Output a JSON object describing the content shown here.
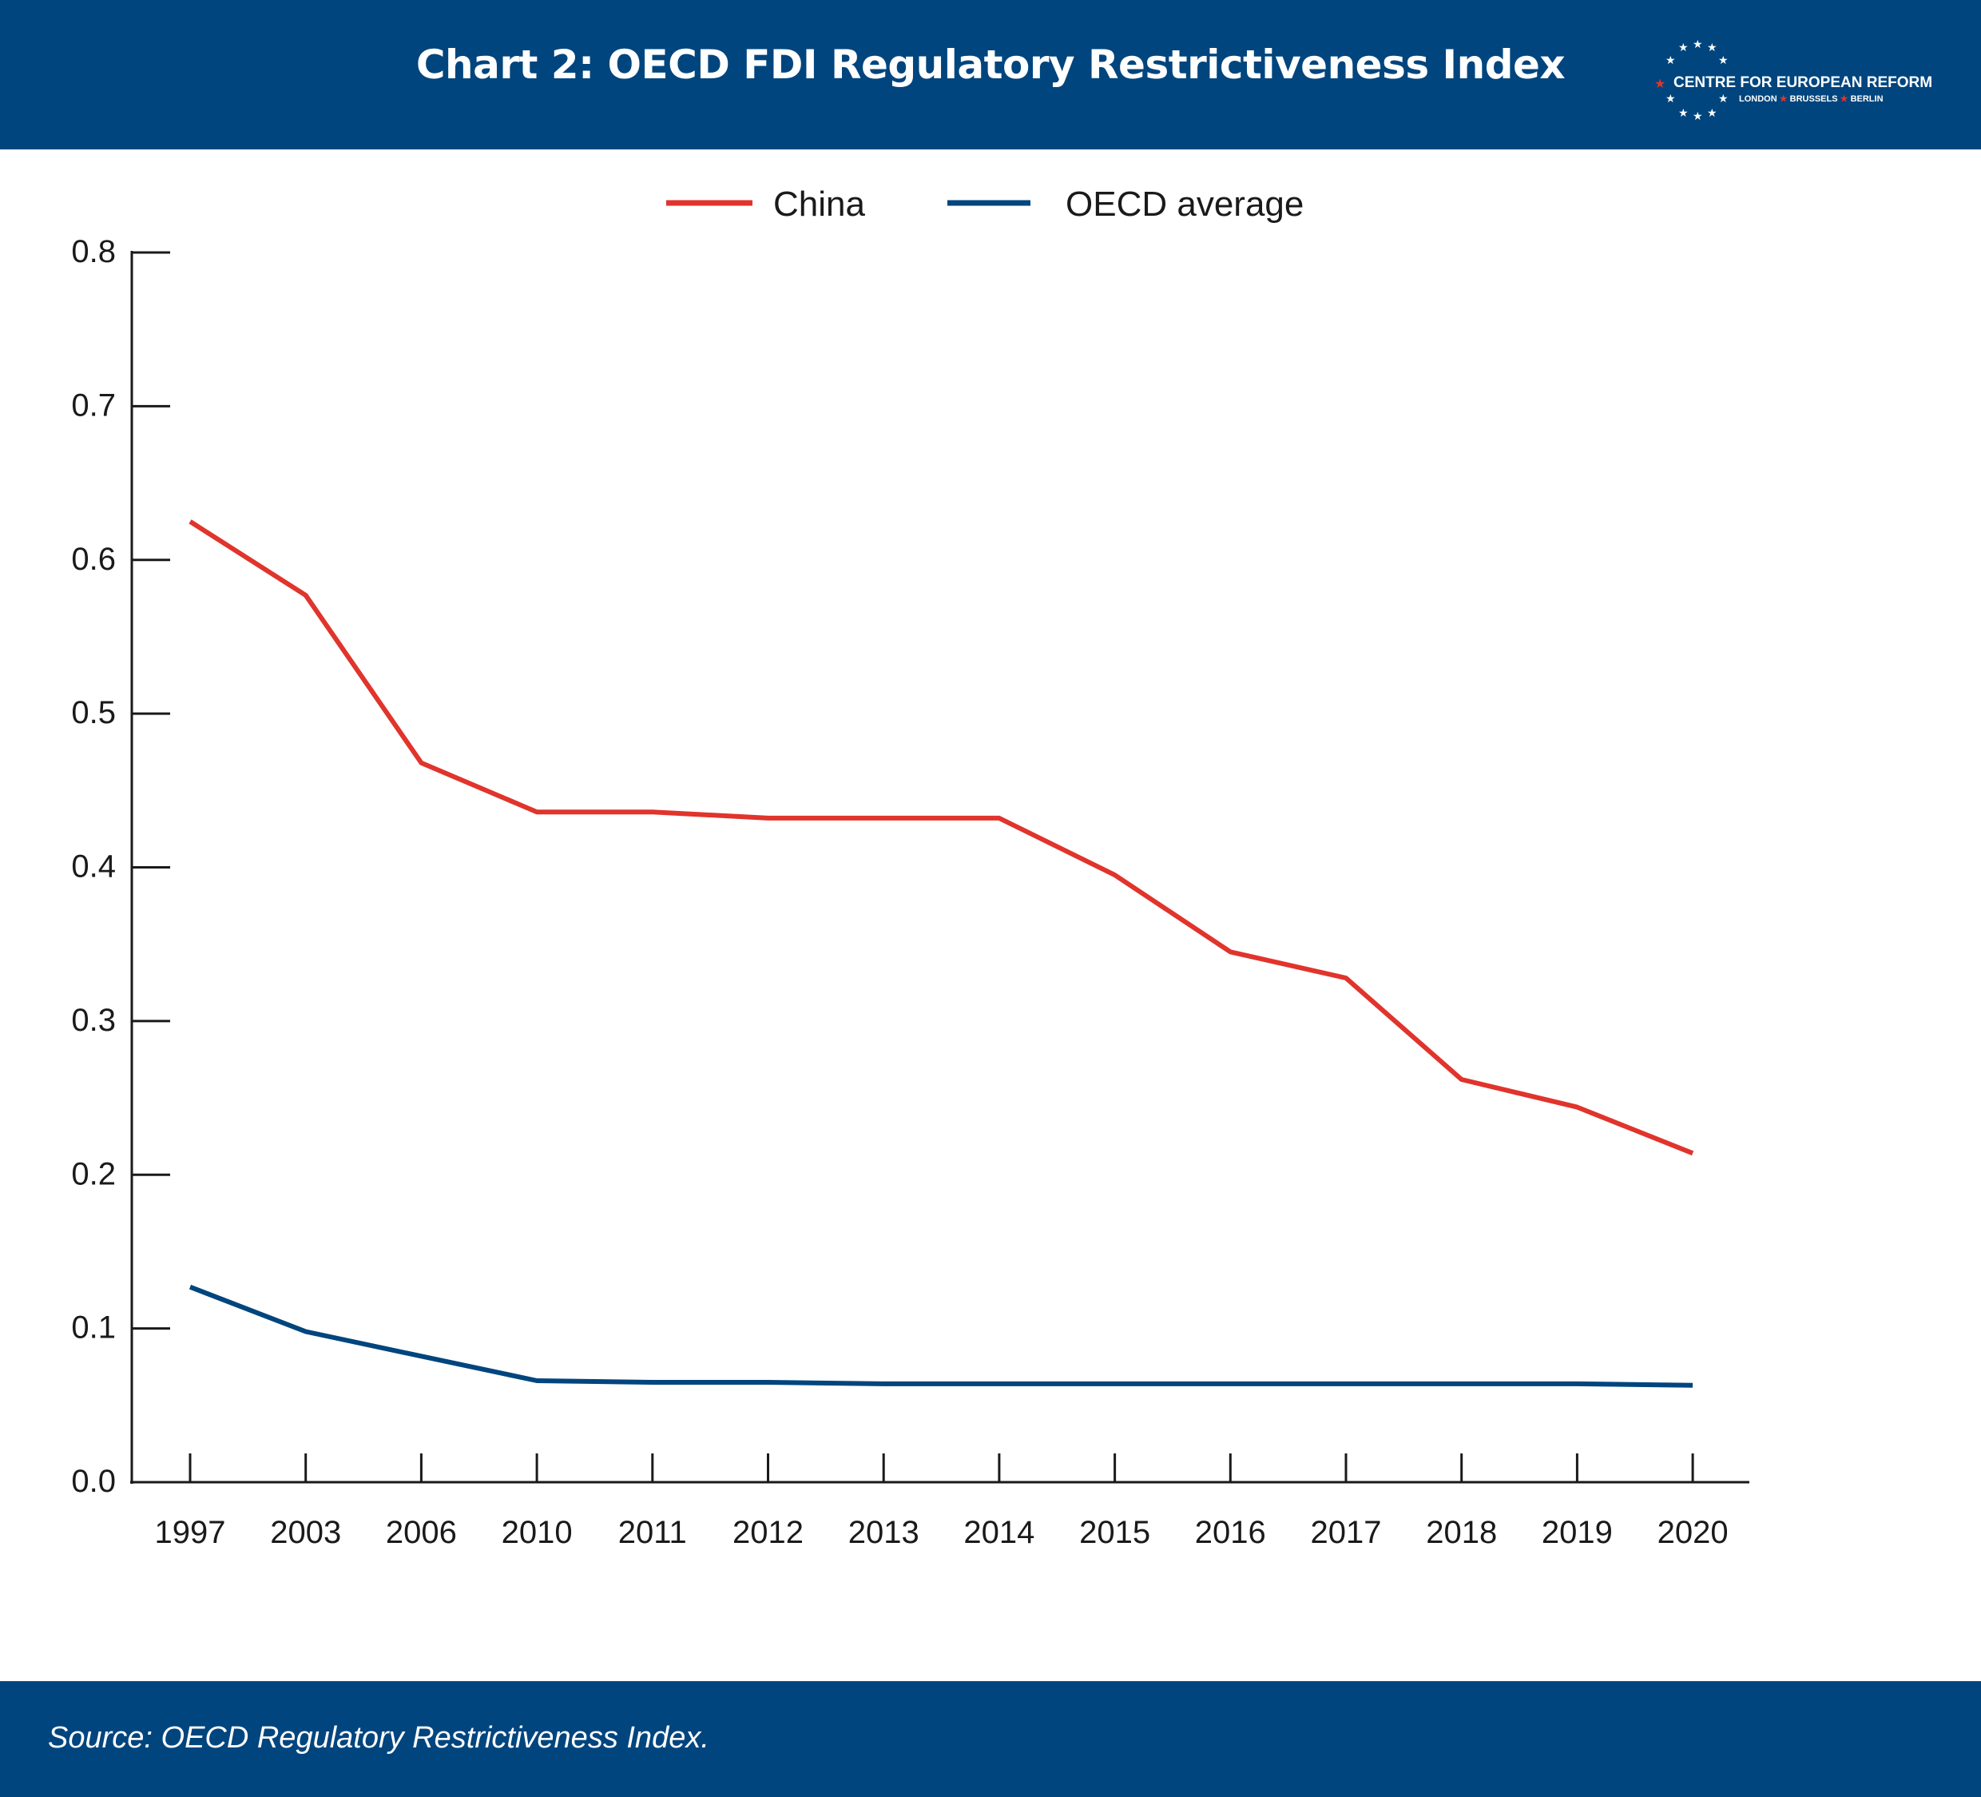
{
  "header": {
    "title": "Chart 2: OECD FDI Regulatory Restrictiveness Index",
    "logo": {
      "name": "CENTRE FOR EUROPEAN REFORM",
      "cities": [
        "LONDON",
        "BRUSSELS",
        "BERLIN"
      ]
    }
  },
  "footer": {
    "source": "Source: OECD Regulatory Restrictiveness Index."
  },
  "colors": {
    "header_bg": "#00457e",
    "china": "#e0342c",
    "oecd": "#00457e",
    "axis": "#1a1a1a"
  },
  "chart_data": {
    "type": "line",
    "title": "",
    "xlabel": "",
    "ylabel": "",
    "categories": [
      "1997",
      "2003",
      "2006",
      "2010",
      "2011",
      "2012",
      "2013",
      "2014",
      "2015",
      "2016",
      "2017",
      "2018",
      "2019",
      "2020"
    ],
    "ylim": [
      0,
      0.8
    ],
    "yticks": [
      "0.0",
      "0.1",
      "0.2",
      "0.3",
      "0.4",
      "0.5",
      "0.6",
      "0.7",
      "0.8"
    ],
    "grid": false,
    "legend_position": "top-center",
    "series": [
      {
        "name": "China",
        "color": "#e0342c",
        "values": [
          0.625,
          0.577,
          0.468,
          0.436,
          0.436,
          0.432,
          0.432,
          0.432,
          0.395,
          0.345,
          0.328,
          0.262,
          0.244,
          0.214
        ]
      },
      {
        "name": "OECD average",
        "color": "#00457e",
        "values": [
          0.127,
          0.098,
          0.082,
          0.066,
          0.065,
          0.065,
          0.064,
          0.064,
          0.064,
          0.064,
          0.064,
          0.064,
          0.064,
          0.063
        ]
      }
    ]
  }
}
